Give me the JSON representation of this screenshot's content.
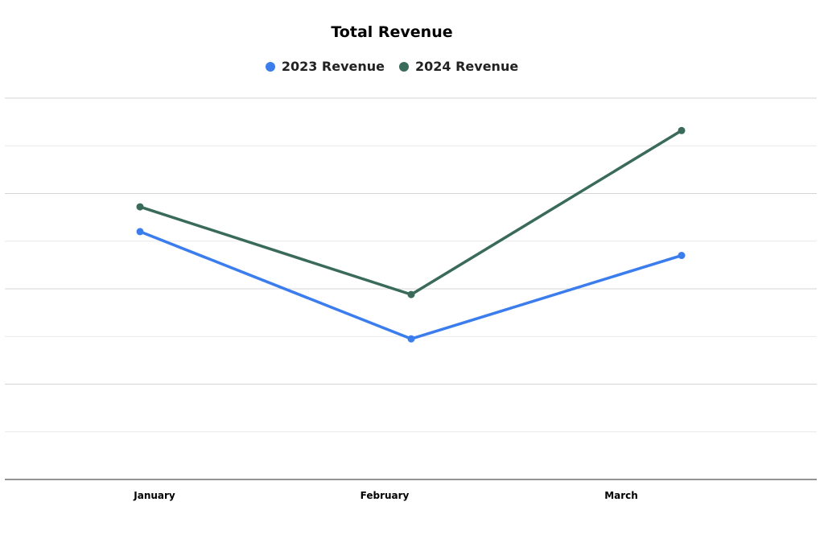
{
  "chart_data": {
    "type": "line",
    "title": "Total Revenue",
    "xlabel": "",
    "ylabel": "",
    "categories": [
      "January",
      "February",
      "March"
    ],
    "series": [
      {
        "name": "2023 Revenue",
        "color": "#3b7ded",
        "values": [
          5.2,
          2.95,
          4.7
        ]
      },
      {
        "name": "2024 Revenue",
        "color": "#3a6b5a",
        "values": [
          5.72,
          3.88,
          7.32
        ]
      }
    ],
    "ylim": [
      0,
      8
    ],
    "y_tick_labels_shown": false,
    "grid": true,
    "legend_position": "top"
  }
}
